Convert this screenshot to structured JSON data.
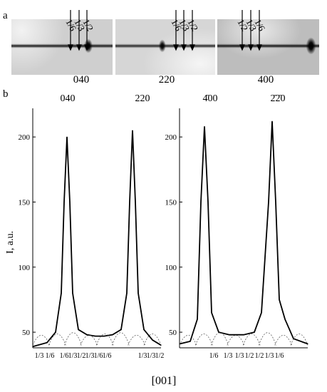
{
  "panel_a": {
    "letter": "a",
    "images": [
      {
        "label": "040",
        "arrow_labels": [
          "1/6",
          "1/3",
          "1/2"
        ]
      },
      {
        "label": "220",
        "arrow_labels": [
          "1/6",
          "1/3",
          "1/2"
        ]
      },
      {
        "label": "400",
        "arrow_labels": [
          "1/2",
          "1/3",
          "1/6"
        ]
      }
    ]
  },
  "panel_b": {
    "letter": "b",
    "xlabel": "[001]",
    "ylabel": "I, a.u."
  },
  "chart_data": [
    {
      "type": "line",
      "title": "",
      "ylabel": "I, a.u.",
      "xlabel": "[001]",
      "ylim": [
        38,
        222
      ],
      "yticks": [
        50,
        100,
        150,
        200
      ],
      "peak_labels": [
        "040",
        "220"
      ],
      "fraction_labels": [
        "1/3",
        "1/6",
        "1/6",
        "1/3",
        "1/2",
        "1/3",
        "1/6",
        "1/6",
        "1/3",
        "1/3",
        "1/2"
      ],
      "series": [
        {
          "values": [
            [
              0,
              39
            ],
            [
              25,
              42
            ],
            [
              40,
              50
            ],
            [
              50,
              80
            ],
            [
              55,
              150
            ],
            [
              60,
              200
            ],
            [
              65,
              150
            ],
            [
              70,
              80
            ],
            [
              80,
              52
            ],
            [
              95,
              48
            ],
            [
              110,
              47
            ],
            [
              125,
              47
            ],
            [
              140,
              48
            ],
            [
              155,
              52
            ],
            [
              165,
              80
            ],
            [
              170,
              150
            ],
            [
              175,
              205
            ],
            [
              180,
              150
            ],
            [
              185,
              80
            ],
            [
              195,
              52
            ],
            [
              210,
              44
            ],
            [
              225,
              40
            ]
          ]
        }
      ]
    },
    {
      "type": "line",
      "title": "",
      "ylim": [
        38,
        222
      ],
      "yticks": [
        50,
        100,
        150,
        200
      ],
      "peak_labels": [
        "4̄00",
        "2̄2̄0"
      ],
      "fraction_labels": [
        "1/6",
        "1/3",
        "1/3",
        "1/2",
        "1/2",
        "1/3",
        "1/6"
      ],
      "series": [
        {
          "values": [
            [
              0,
              41
            ],
            [
              15,
              43
            ],
            [
              25,
              60
            ],
            [
              30,
              150
            ],
            [
              35,
              208
            ],
            [
              40,
              150
            ],
            [
              45,
              65
            ],
            [
              55,
              50
            ],
            [
              70,
              48
            ],
            [
              90,
              48
            ],
            [
              105,
              50
            ],
            [
              115,
              65
            ],
            [
              125,
              150
            ],
            [
              130,
              212
            ],
            [
              135,
              150
            ],
            [
              140,
              75
            ],
            [
              148,
              60
            ],
            [
              160,
              45
            ],
            [
              180,
              41
            ]
          ]
        }
      ]
    }
  ]
}
